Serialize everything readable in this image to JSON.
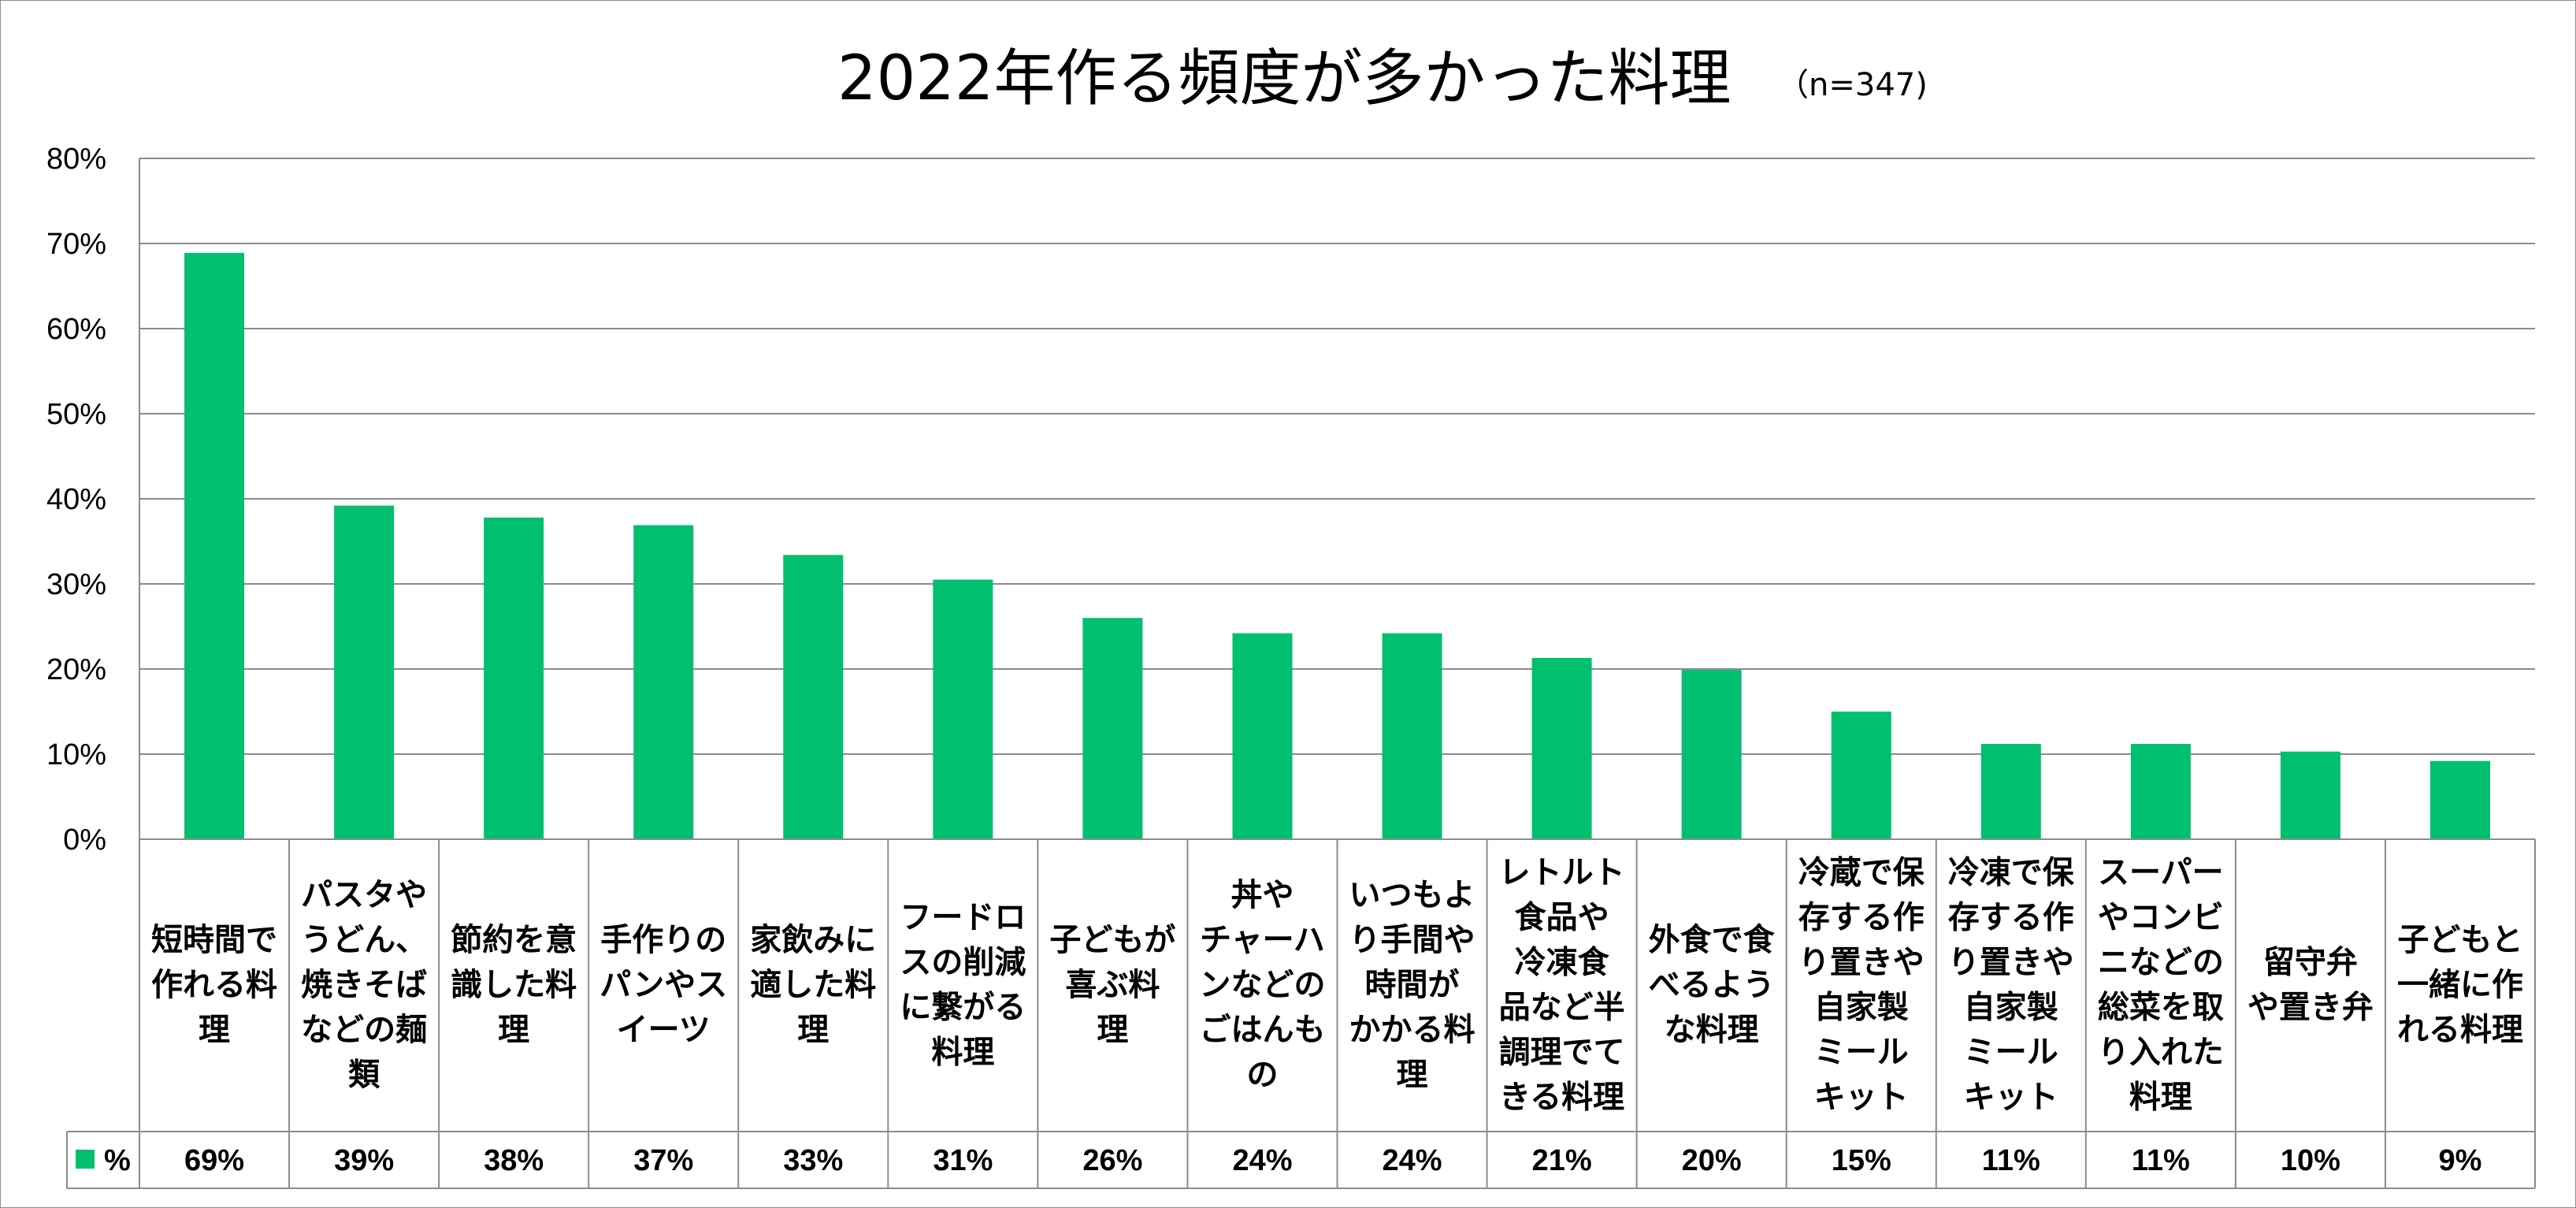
{
  "chart_data": {
    "type": "bar",
    "title": "2022年作る頻度が多かった料理",
    "subtitle": "（n=347)",
    "series": [
      {
        "name": "%",
        "color": "#00BF6F",
        "values": [
          69,
          39,
          38,
          37,
          33,
          31,
          26,
          24,
          24,
          21,
          20,
          15,
          11,
          11,
          10,
          9
        ]
      }
    ],
    "categories": [
      [
        "短時間で",
        "作れる料",
        "理"
      ],
      [
        "パスタや",
        "うどん、",
        "焼きそば",
        "などの麺",
        "類"
      ],
      [
        "節約を意",
        "識した料",
        "理"
      ],
      [
        "手作りの",
        "パンやス",
        "イーツ"
      ],
      [
        "家飲みに",
        "適した料",
        "理"
      ],
      [
        "フードロ",
        "スの削減",
        "に繋がる",
        "料理"
      ],
      [
        "子どもが",
        "喜ぶ料",
        "理"
      ],
      [
        "丼や",
        "チャーハ",
        "ンなどの",
        "ごはんも",
        "の"
      ],
      [
        "いつもよ",
        "り手間や",
        "時間が",
        "かかる料",
        "理"
      ],
      [
        "レトルト",
        "食品や",
        "冷凍食",
        "品など半",
        "調理でて",
        "きる料理"
      ],
      [
        "外食で食",
        "べるよう",
        "な料理"
      ],
      [
        "冷蔵で保",
        "存する作",
        "り置きや",
        "自家製",
        "ミール",
        "キット"
      ],
      [
        "冷凍で保",
        "存する作",
        "り置きや",
        "自家製",
        "ミール",
        "キット"
      ],
      [
        "スーパー",
        "やコンビ",
        "ニなどの",
        "総菜を取",
        "り入れた",
        "料理"
      ],
      [
        "留守弁",
        "や置き弁"
      ],
      [
        "子どもと",
        "一緒に作",
        "れる料理"
      ]
    ],
    "value_labels": [
      "69%",
      "39%",
      "38%",
      "37%",
      "33%",
      "31%",
      "26%",
      "24%",
      "24%",
      "21%",
      "20%",
      "15%",
      "11%",
      "11%",
      "10%",
      "9%"
    ],
    "actual_values": [
      68.9,
      39.2,
      37.8,
      36.9,
      33.4,
      30.5,
      26.0,
      24.2,
      24.2,
      21.3,
      19.9,
      15.0,
      11.2,
      11.2,
      10.3,
      9.2
    ],
    "ylim": [
      0,
      80
    ],
    "yticks": [
      "0%",
      "10%",
      "20%",
      "30%",
      "40%",
      "50%",
      "60%",
      "70%",
      "80%"
    ],
    "grid": true,
    "legend": "data-table",
    "xlabel": "",
    "ylabel": ""
  }
}
